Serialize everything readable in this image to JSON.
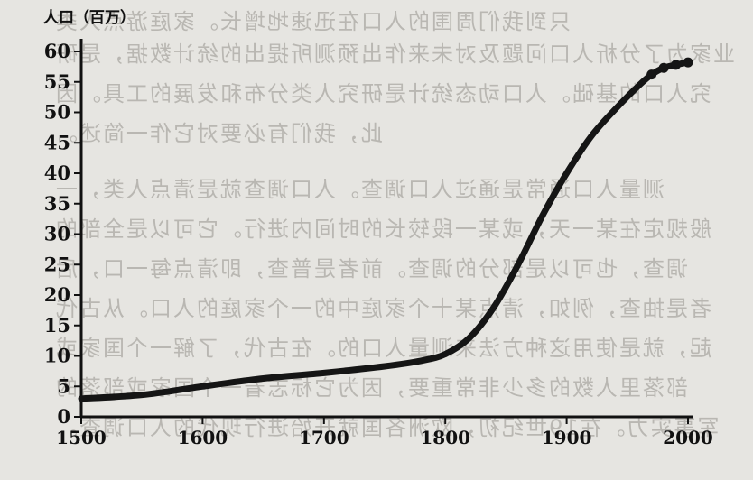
{
  "chart_data": {
    "type": "line",
    "title": "",
    "ylabel": "人口（百万）",
    "xlabel": "",
    "xlim": [
      1500,
      2000
    ],
    "ylim": [
      0,
      60
    ],
    "x_ticks": [
      1500,
      1600,
      1700,
      1800,
      1900,
      2000
    ],
    "y_ticks": [
      0,
      5,
      10,
      15,
      20,
      25,
      30,
      35,
      40,
      45,
      50,
      55,
      60
    ],
    "grid": false,
    "series": [
      {
        "x": [
          1500,
          1550,
          1600,
          1650,
          1700,
          1750,
          1780,
          1800,
          1820,
          1840,
          1860,
          1880,
          1900,
          1920,
          1940,
          1960,
          1970,
          1980,
          1990,
          2000
        ],
        "y": [
          3,
          3.6,
          5,
          6.3,
          7.2,
          8.3,
          9.2,
          10.3,
          13,
          18,
          25,
          33,
          40,
          46,
          50.5,
          54.5,
          56.2,
          57.3,
          57.8,
          58.2
        ]
      }
    ]
  },
  "background_text": [
    "只到我们周围的人口在迅速地增长。家庭游点人类",
    "业家为了分析人口问题及对未来作出预测所提出的统计数据，是研",
    "究人口的基础。人口动态统计是研究人类分布和发展的工具。因",
    "此，我们有必要对它作一简述。",
    "测量人口通常是通过人口调查。人口调查就是清点人类，一",
    "般规定在某一天，或某一段较长的时间内进行。它可以是全部的",
    "调查，也可以是部分的调查。前者是普查，即清点每一口，后",
    "者是抽查，例如，清点某十个家庭中的一个家庭的人口。从古代",
    "起，就是使用这种方法来测量人口的。在古代，了解一个国家或",
    "部落里人数的多少非常重要，因为它标志着一个国家或部落的",
    "军事实力。在19世纪初，欧洲各国就开始进行现代的人口调查。"
  ]
}
